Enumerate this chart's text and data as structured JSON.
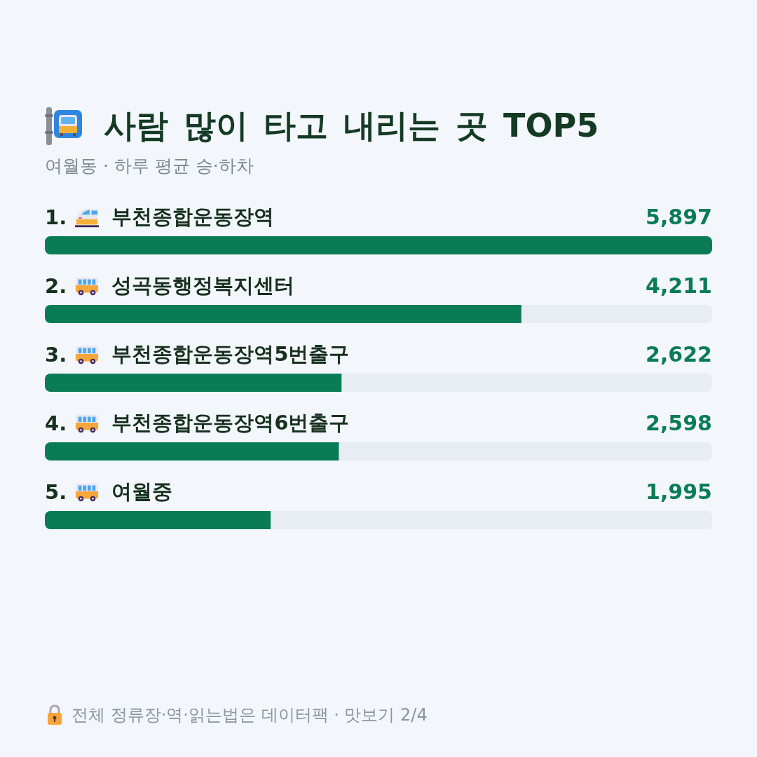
{
  "chart_data": {
    "type": "bar",
    "orientation": "horizontal",
    "title": "사람 많이 타고 내리는 곳 TOP5",
    "subtitle": "여월동 · 하루 평균 승·하차",
    "categories": [
      "1. 부천종합운동장역",
      "2. 성곡동행정복지센터",
      "3. 부천종합운동장역5번출구",
      "4. 부천종합운동장역6번출구",
      "5. 여월중"
    ],
    "values": [
      5897,
      4211,
      2622,
      2598,
      1995
    ],
    "value_labels": [
      "5,897",
      "4,211",
      "2,622",
      "2,598",
      "1,995"
    ],
    "color": "#0a7c55",
    "xlim": [
      0,
      5897
    ],
    "tick_labels": false,
    "grid": false,
    "annotations": [
      "전체 정류장·역·읽는법은 데이터팩 · 맛보기 2/4"
    ]
  }
}
